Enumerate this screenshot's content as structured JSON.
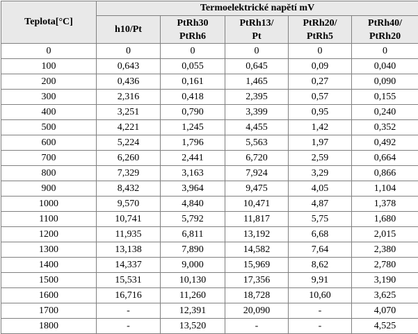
{
  "table": {
    "temp_header": "Teplota[°C]",
    "group_header": "Termoelektrické napětí mV",
    "columns": [
      {
        "line1": "h10/Pt",
        "line2": ""
      },
      {
        "line1": "PtRh30",
        "line2": "PtRh6"
      },
      {
        "line1": "PtRh13/",
        "line2": "Pt"
      },
      {
        "line1": "PtRh20/",
        "line2": "PtRh5"
      },
      {
        "line1": "PtRh40/",
        "line2": "PtRh20"
      }
    ],
    "rows": [
      {
        "t": "0",
        "v": [
          "0",
          "0",
          "0",
          "0",
          "0"
        ]
      },
      {
        "t": "100",
        "v": [
          "0,643",
          "0,055",
          "0,645",
          "0,09",
          "0,040"
        ]
      },
      {
        "t": "200",
        "v": [
          "0,436",
          "0,161",
          "1,465",
          "0,27",
          "0,090"
        ]
      },
      {
        "t": "300",
        "v": [
          "2,316",
          "0,418",
          "2,395",
          "0,57",
          "0,155"
        ]
      },
      {
        "t": "400",
        "v": [
          "3,251",
          "0,790",
          "3,399",
          "0,95",
          "0,240"
        ]
      },
      {
        "t": "500",
        "v": [
          "4,221",
          "1,245",
          "4,455",
          "1,42",
          "0,352"
        ]
      },
      {
        "t": "600",
        "v": [
          "5,224",
          "1,796",
          "5,563",
          "1,97",
          "0,492"
        ]
      },
      {
        "t": "700",
        "v": [
          "6,260",
          "2,441",
          "6,720",
          "2,59",
          "0,664"
        ]
      },
      {
        "t": "800",
        "v": [
          "7,329",
          "3,163",
          "7,924",
          "3,29",
          "0,866"
        ]
      },
      {
        "t": "900",
        "v": [
          "8,432",
          "3,964",
          "9,475",
          "4,05",
          "1,104"
        ]
      },
      {
        "t": "1000",
        "v": [
          "9,570",
          "4,840",
          "10,471",
          "4,87",
          "1,378"
        ]
      },
      {
        "t": "1100",
        "v": [
          "10,741",
          "5,792",
          "11,817",
          "5,75",
          "1,680"
        ]
      },
      {
        "t": "1200",
        "v": [
          "11,935",
          "6,811",
          "13,192",
          "6,68",
          "2,015"
        ]
      },
      {
        "t": "1300",
        "v": [
          "13,138",
          "7,890",
          "14,582",
          "7,64",
          "2,380"
        ]
      },
      {
        "t": "1400",
        "v": [
          "14,337",
          "9,000",
          "15,969",
          "8,62",
          "2,780"
        ]
      },
      {
        "t": "1500",
        "v": [
          "15,531",
          "10,130",
          "17,356",
          "9,91",
          "3,190"
        ]
      },
      {
        "t": "1600",
        "v": [
          "16,716",
          "11,260",
          "18,728",
          "10,60",
          "3,625"
        ]
      },
      {
        "t": "1700",
        "v": [
          "-",
          "12,391",
          "20,090",
          "-",
          "4,070"
        ]
      },
      {
        "t": "1800",
        "v": [
          "-",
          "13,520",
          "-",
          "-",
          "4,525"
        ]
      }
    ]
  },
  "colors": {
    "header_bg": "#e9e9e9",
    "border": "#7f7f7f"
  }
}
